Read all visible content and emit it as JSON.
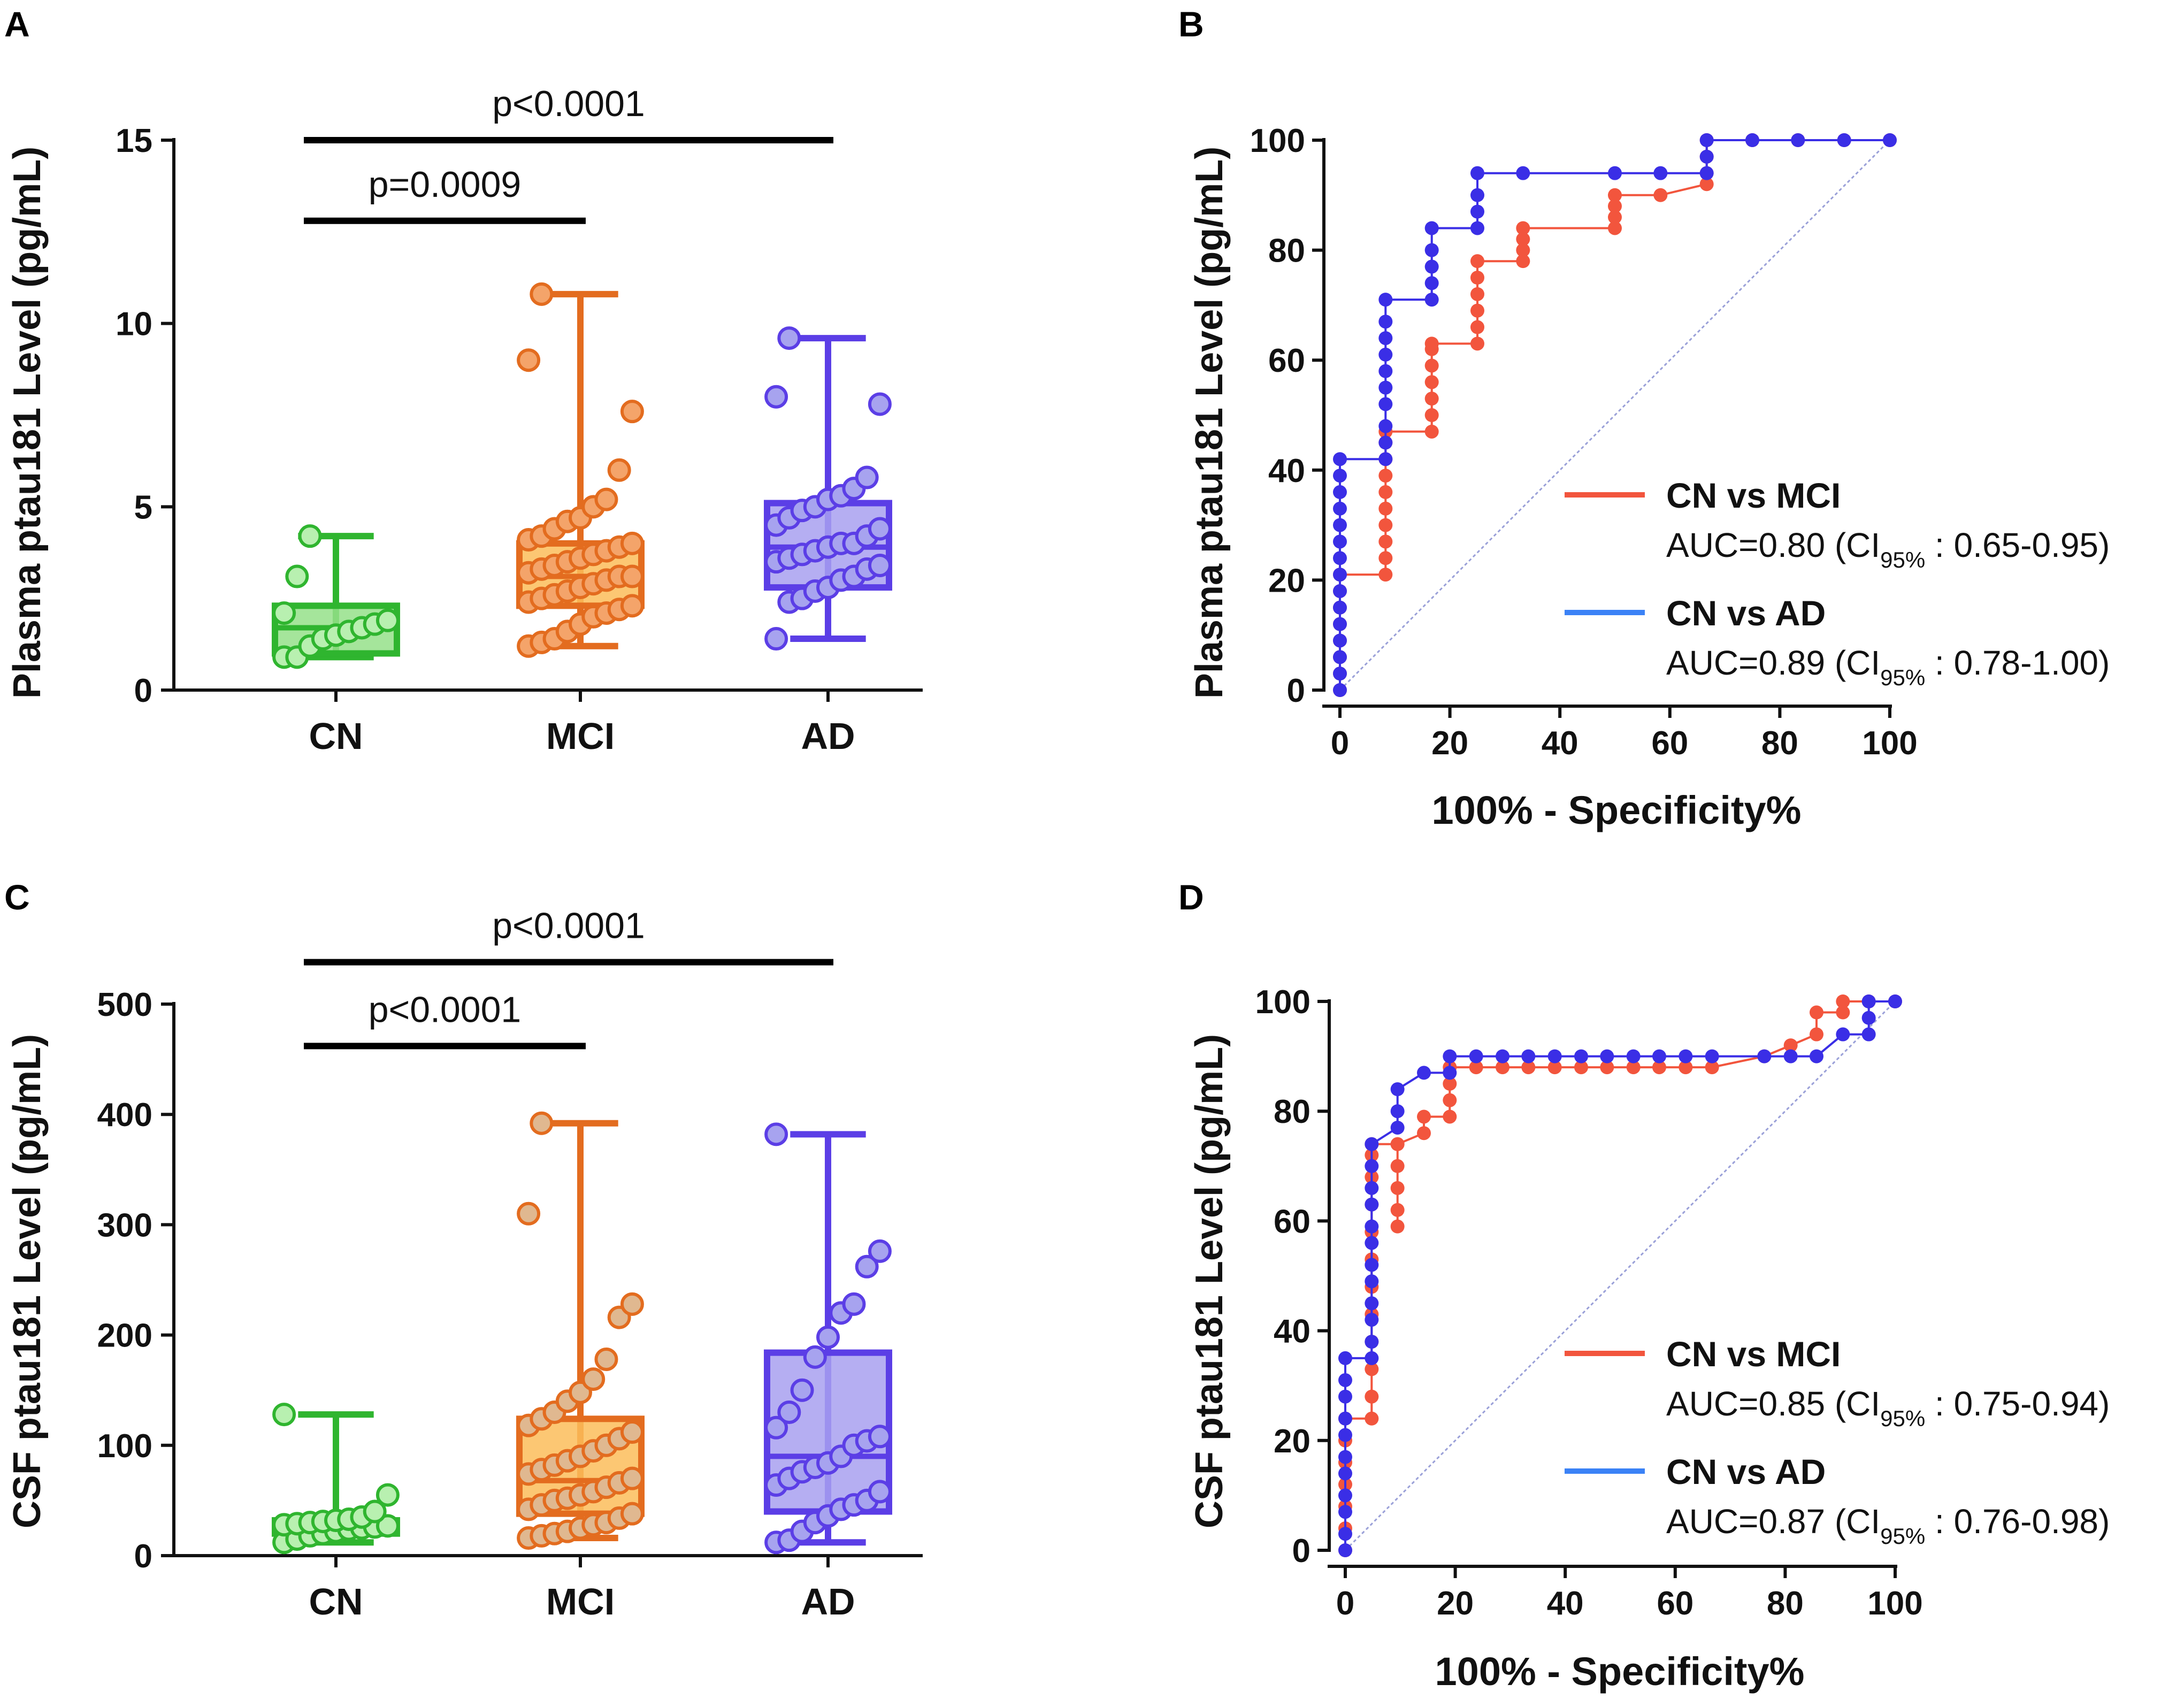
{
  "chart_data": [
    {
      "panel": "A",
      "type": "box",
      "ylabel": "Plasma ptau181 Level (pg/mL)",
      "ylim": [
        0,
        15
      ],
      "yticks": [
        "0",
        "5",
        "10",
        "15"
      ],
      "categories": [
        "CN",
        "MCI",
        "AD"
      ],
      "colors": {
        "CN": {
          "stroke": "#2fb52f",
          "fill": "#95e08a",
          "point": "#b8f0b0"
        },
        "MCI": {
          "stroke": "#e36c1f",
          "fill": "#fbbd5a",
          "point": "#f4a46a"
        },
        "AD": {
          "stroke": "#5b3ee6",
          "fill": "#a8a0f0",
          "point": "#a7a3ef"
        }
      },
      "groups": [
        {
          "name": "CN",
          "min": 0.9,
          "q1": 1.0,
          "median": 1.7,
          "q3": 2.3,
          "max": 4.2,
          "points": [
            0.9,
            0.9,
            1.2,
            1.4,
            1.5,
            1.6,
            1.7,
            1.8,
            1.9,
            2.1,
            3.1,
            4.2
          ]
        },
        {
          "name": "MCI",
          "min": 1.2,
          "q1": 2.3,
          "median": 3.1,
          "q3": 4.0,
          "max": 10.8,
          "points": [
            1.2,
            1.3,
            1.4,
            1.6,
            1.8,
            2.0,
            2.1,
            2.2,
            2.3,
            2.4,
            2.5,
            2.6,
            2.7,
            2.8,
            2.9,
            3.0,
            3.1,
            3.1,
            3.2,
            3.3,
            3.4,
            3.5,
            3.6,
            3.7,
            3.8,
            3.9,
            4.0,
            4.1,
            4.2,
            4.4,
            4.6,
            4.7,
            5.0,
            5.2,
            6.0,
            7.6,
            9.0,
            10.8
          ]
        },
        {
          "name": "AD",
          "min": 1.4,
          "q1": 2.8,
          "median": 3.9,
          "q3": 5.1,
          "max": 9.6,
          "points": [
            1.4,
            2.4,
            2.5,
            2.7,
            2.8,
            3.0,
            3.1,
            3.3,
            3.4,
            3.5,
            3.6,
            3.7,
            3.8,
            3.9,
            4.0,
            4.0,
            4.2,
            4.4,
            4.5,
            4.7,
            4.9,
            5.0,
            5.2,
            5.3,
            5.5,
            5.8,
            7.8,
            8.0,
            9.6
          ]
        }
      ],
      "comparisons": [
        {
          "from": "CN",
          "to": "AD",
          "label": "p<0.0001",
          "level": 15
        },
        {
          "from": "CN",
          "to": "MCI",
          "label": "p=0.0009",
          "level": 12.8
        }
      ]
    },
    {
      "panel": "B",
      "type": "line",
      "ylabel": "Plasma ptau181 Level (pg/mL)",
      "xlabel": "100% - Specificity%",
      "xlim": [
        0,
        100
      ],
      "ylim": [
        0,
        100
      ],
      "xticks": [
        "0",
        "20",
        "40",
        "60",
        "80",
        "100"
      ],
      "yticks": [
        "0",
        "20",
        "40",
        "60",
        "80",
        "100"
      ],
      "series": [
        {
          "name": "CN vs MCI",
          "color": "#f2553d",
          "auc_prefix": "AUC=0.80 (CI",
          "auc_sub": "95%",
          "auc_suffix": " : 0.65-0.95)",
          "points": [
            [
              0,
              0
            ],
            [
              0,
              3
            ],
            [
              0,
              6
            ],
            [
              0,
              9
            ],
            [
              0,
              12
            ],
            [
              0,
              15
            ],
            [
              0,
              18
            ],
            [
              0,
              21
            ],
            [
              8.3,
              21
            ],
            [
              8.3,
              24
            ],
            [
              8.3,
              27
            ],
            [
              8.3,
              30
            ],
            [
              8.3,
              33
            ],
            [
              8.3,
              36
            ],
            [
              8.3,
              39
            ],
            [
              8.3,
              42
            ],
            [
              8.3,
              45
            ],
            [
              8.3,
              47
            ],
            [
              16.7,
              47
            ],
            [
              16.7,
              50
            ],
            [
              16.7,
              53
            ],
            [
              16.7,
              56
            ],
            [
              16.7,
              59
            ],
            [
              16.7,
              62
            ],
            [
              16.7,
              63
            ],
            [
              25,
              63
            ],
            [
              25,
              66
            ],
            [
              25,
              69
            ],
            [
              25,
              72
            ],
            [
              25,
              75
            ],
            [
              25,
              78
            ],
            [
              33.3,
              78
            ],
            [
              33.3,
              80
            ],
            [
              33.3,
              82
            ],
            [
              33.3,
              84
            ],
            [
              50,
              84
            ],
            [
              50,
              86
            ],
            [
              50,
              88
            ],
            [
              50,
              90
            ],
            [
              58.3,
              90
            ],
            [
              66.7,
              92
            ],
            [
              66.7,
              94
            ],
            [
              66.7,
              97
            ],
            [
              66.7,
              100
            ],
            [
              75,
              100
            ],
            [
              83.3,
              100
            ],
            [
              91.7,
              100
            ],
            [
              100,
              100
            ]
          ]
        },
        {
          "name": "CN vs AD",
          "color": "#3a2ee6",
          "auc_prefix": "AUC=0.89 (CI",
          "auc_sub": "95%",
          "auc_suffix": " : 0.78-1.00)",
          "points": [
            [
              0,
              0
            ],
            [
              0,
              3
            ],
            [
              0,
              6
            ],
            [
              0,
              9
            ],
            [
              0,
              12
            ],
            [
              0,
              15
            ],
            [
              0,
              18
            ],
            [
              0,
              21
            ],
            [
              0,
              24
            ],
            [
              0,
              27
            ],
            [
              0,
              30
            ],
            [
              0,
              33
            ],
            [
              0,
              36
            ],
            [
              0,
              39
            ],
            [
              0,
              42
            ],
            [
              8.3,
              42
            ],
            [
              8.3,
              45
            ],
            [
              8.3,
              48
            ],
            [
              8.3,
              52
            ],
            [
              8.3,
              55
            ],
            [
              8.3,
              58
            ],
            [
              8.3,
              61
            ],
            [
              8.3,
              64
            ],
            [
              8.3,
              67
            ],
            [
              8.3,
              71
            ],
            [
              16.7,
              71
            ],
            [
              16.7,
              74
            ],
            [
              16.7,
              77
            ],
            [
              16.7,
              80
            ],
            [
              16.7,
              84
            ],
            [
              25,
              84
            ],
            [
              25,
              87
            ],
            [
              25,
              90
            ],
            [
              25,
              94
            ],
            [
              33.3,
              94
            ],
            [
              50,
              94
            ],
            [
              58.3,
              94
            ],
            [
              66.7,
              94
            ],
            [
              66.7,
              97
            ],
            [
              66.7,
              100
            ],
            [
              75,
              100
            ],
            [
              83.3,
              100
            ],
            [
              91.7,
              100
            ],
            [
              100,
              100
            ]
          ]
        }
      ]
    },
    {
      "panel": "C",
      "type": "box",
      "ylabel": "CSF ptau181 Level (pg/mL)",
      "ylim": [
        0,
        500
      ],
      "yticks": [
        "0",
        "100",
        "200",
        "300",
        "400",
        "500"
      ],
      "categories": [
        "CN",
        "MCI",
        "AD"
      ],
      "colors": {
        "CN": {
          "stroke": "#2fb52f",
          "fill": "#95e08a",
          "point": "#b8f0b0"
        },
        "MCI": {
          "stroke": "#e36c1f",
          "fill": "#fbbd5a",
          "point": "#e0b890"
        },
        "AD": {
          "stroke": "#5b3ee6",
          "fill": "#a8a0f0",
          "point": "#a7a3ef"
        }
      },
      "groups": [
        {
          "name": "CN",
          "min": 12,
          "q1": 20,
          "median": 26,
          "q3": 32,
          "max": 128,
          "points": [
            12,
            15,
            18,
            20,
            22,
            24,
            25,
            26,
            27,
            28,
            29,
            30,
            31,
            32,
            33,
            35,
            40,
            55,
            128
          ]
        },
        {
          "name": "MCI",
          "min": 16,
          "q1": 38,
          "median": 68,
          "q3": 124,
          "max": 392,
          "points": [
            16,
            18,
            20,
            22,
            25,
            28,
            30,
            34,
            38,
            42,
            46,
            50,
            52,
            55,
            58,
            62,
            66,
            70,
            74,
            78,
            82,
            86,
            90,
            95,
            100,
            106,
            112,
            118,
            124,
            130,
            140,
            148,
            160,
            178,
            216,
            228,
            310,
            392
          ]
        },
        {
          "name": "AD",
          "min": 12,
          "q1": 40,
          "median": 90,
          "q3": 184,
          "max": 382,
          "points": [
            12,
            14,
            22,
            30,
            36,
            42,
            46,
            50,
            58,
            64,
            70,
            76,
            80,
            84,
            90,
            100,
            104,
            108,
            116,
            130,
            150,
            180,
            198,
            220,
            228,
            262,
            276,
            382
          ]
        }
      ],
      "comparisons": [
        {
          "from": "CN",
          "to": "AD",
          "label": "p<0.0001",
          "level": 538
        },
        {
          "from": "CN",
          "to": "MCI",
          "label": "p<0.0001",
          "level": 462
        }
      ]
    },
    {
      "panel": "D",
      "type": "line",
      "ylabel": "CSF ptau181 Level (pg/mL)",
      "xlabel": "100% - Specificity%",
      "xlim": [
        0,
        100
      ],
      "ylim": [
        0,
        100
      ],
      "xticks": [
        "0",
        "20",
        "40",
        "60",
        "80",
        "100"
      ],
      "yticks": [
        "0",
        "20",
        "40",
        "60",
        "80",
        "100"
      ],
      "series": [
        {
          "name": "CN vs MCI",
          "color": "#f2553d",
          "auc_prefix": "AUC=0.85 (CI",
          "auc_sub": "95%",
          "auc_suffix": " : 0.75-0.94)",
          "points": [
            [
              0,
              0
            ],
            [
              0,
              4
            ],
            [
              0,
              8
            ],
            [
              0,
              12
            ],
            [
              0,
              16
            ],
            [
              0,
              20
            ],
            [
              0,
              24
            ],
            [
              4.8,
              24
            ],
            [
              4.8,
              28
            ],
            [
              4.8,
              33
            ],
            [
              4.8,
              38
            ],
            [
              4.8,
              43
            ],
            [
              4.8,
              48
            ],
            [
              4.8,
              53
            ],
            [
              4.8,
              58
            ],
            [
              4.8,
              63
            ],
            [
              4.8,
              68
            ],
            [
              4.8,
              72
            ],
            [
              4.8,
              74
            ],
            [
              9.5,
              74
            ],
            [
              9.5,
              59
            ],
            [
              9.5,
              62
            ],
            [
              9.5,
              66
            ],
            [
              9.5,
              70
            ],
            [
              9.5,
              74
            ],
            [
              14.3,
              76
            ],
            [
              14.3,
              79
            ],
            [
              19,
              79
            ],
            [
              19,
              82
            ],
            [
              19,
              85
            ],
            [
              19,
              88
            ],
            [
              23.8,
              88
            ],
            [
              28.6,
              88
            ],
            [
              33.3,
              88
            ],
            [
              38.1,
              88
            ],
            [
              42.9,
              88
            ],
            [
              47.6,
              88
            ],
            [
              52.4,
              88
            ],
            [
              57.1,
              88
            ],
            [
              61.9,
              88
            ],
            [
              66.7,
              88
            ],
            [
              76.2,
              90
            ],
            [
              81,
              92
            ],
            [
              85.7,
              94
            ],
            [
              85.7,
              98
            ],
            [
              90.5,
              98
            ],
            [
              90.5,
              100
            ],
            [
              95.2,
              100
            ],
            [
              100,
              100
            ]
          ]
        },
        {
          "name": "CN vs AD",
          "color": "#3a2ee6",
          "auc_prefix": "AUC=0.87 (CI",
          "auc_sub": "95%",
          "auc_suffix": " : 0.76-0.98)",
          "points": [
            [
              0,
              0
            ],
            [
              0,
              3
            ],
            [
              0,
              7
            ],
            [
              0,
              10
            ],
            [
              0,
              14
            ],
            [
              0,
              17
            ],
            [
              0,
              21
            ],
            [
              0,
              24
            ],
            [
              0,
              28
            ],
            [
              0,
              31
            ],
            [
              0,
              35
            ],
            [
              4.8,
              35
            ],
            [
              4.8,
              38
            ],
            [
              4.8,
              42
            ],
            [
              4.8,
              45
            ],
            [
              4.8,
              49
            ],
            [
              4.8,
              52
            ],
            [
              4.8,
              56
            ],
            [
              4.8,
              59
            ],
            [
              4.8,
              63
            ],
            [
              4.8,
              66
            ],
            [
              4.8,
              70
            ],
            [
              4.8,
              74
            ],
            [
              9.5,
              77
            ],
            [
              9.5,
              80
            ],
            [
              9.5,
              84
            ],
            [
              14.3,
              87
            ],
            [
              19,
              87
            ],
            [
              19,
              90
            ],
            [
              23.8,
              90
            ],
            [
              28.6,
              90
            ],
            [
              33.3,
              90
            ],
            [
              38.1,
              90
            ],
            [
              42.9,
              90
            ],
            [
              47.6,
              90
            ],
            [
              52.4,
              90
            ],
            [
              57.1,
              90
            ],
            [
              61.9,
              90
            ],
            [
              66.7,
              90
            ],
            [
              76.2,
              90
            ],
            [
              81,
              90
            ],
            [
              85.7,
              90
            ],
            [
              90.5,
              94
            ],
            [
              95.2,
              94
            ],
            [
              95.2,
              97
            ],
            [
              95.2,
              100
            ],
            [
              100,
              100
            ]
          ]
        }
      ]
    }
  ]
}
